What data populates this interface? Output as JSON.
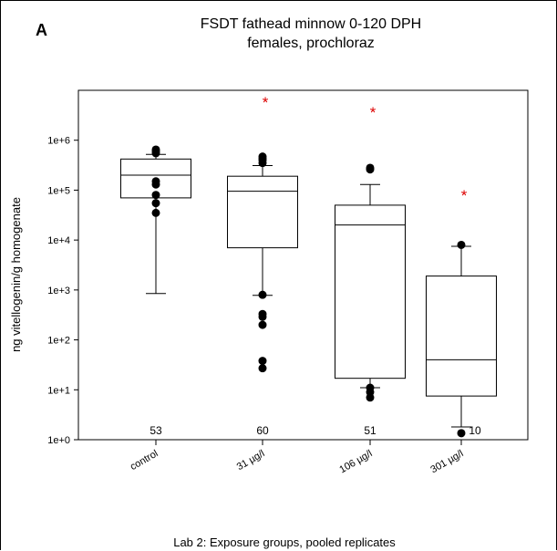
{
  "chart_data": {
    "type": "box",
    "panel_label": "A",
    "title": "FSDT fathead minnow 0-120 DPH",
    "subtitle": "females, prochloraz",
    "xlabel": "Lab 2: Exposure groups, pooled replicates",
    "ylabel": "ng vitellogenin/g homogenate",
    "yscale": "log",
    "ylim": [
      1,
      10000000
    ],
    "y_ticks": [
      {
        "value": 1,
        "label": "1e+0"
      },
      {
        "value": 10,
        "label": "1e+1"
      },
      {
        "value": 100,
        "label": "1e+2"
      },
      {
        "value": 1000,
        "label": "1e+3"
      },
      {
        "value": 10000,
        "label": "1e+4"
      },
      {
        "value": 100000,
        "label": "1e+5"
      },
      {
        "value": 1000000,
        "label": "1e+6"
      }
    ],
    "categories": [
      "control",
      "31 µg/l",
      "106 µg/l",
      "301 µg/l"
    ],
    "boxes": [
      {
        "category": "control",
        "n": "53",
        "whisker_low": 850,
        "q1": 70000,
        "median": 200000,
        "q3": 420000,
        "whisker_high": 520000,
        "outliers": [
          600000,
          650000,
          550000,
          150000,
          130000,
          80000,
          55000,
          35000
        ],
        "significant": false
      },
      {
        "category": "31 µg/l",
        "n": "60",
        "whisker_low": 780,
        "q1": 7000,
        "median": 95000,
        "q3": 190000,
        "whisker_high": 310000,
        "outliers": [
          350000,
          400000,
          430000,
          470000,
          800,
          330,
          290,
          200,
          38,
          27
        ],
        "significant": true
      },
      {
        "category": "106 µg/l",
        "n": "51",
        "whisker_low": 11,
        "q1": 17,
        "median": 20000,
        "q3": 50000,
        "whisker_high": 130000,
        "outliers": [
          280000,
          260000,
          11,
          9,
          7
        ],
        "significant": true
      },
      {
        "category": "301 µg/l",
        "n": "10",
        "whisker_low": 1.8,
        "q1": 7.5,
        "median": 40,
        "q3": 1900,
        "whisker_high": 7500,
        "outliers": [
          8000,
          1.35
        ],
        "significant": true
      }
    ],
    "significance_marker": "*",
    "colors": {
      "marker": "#dd0000",
      "ink": "#000000"
    }
  }
}
